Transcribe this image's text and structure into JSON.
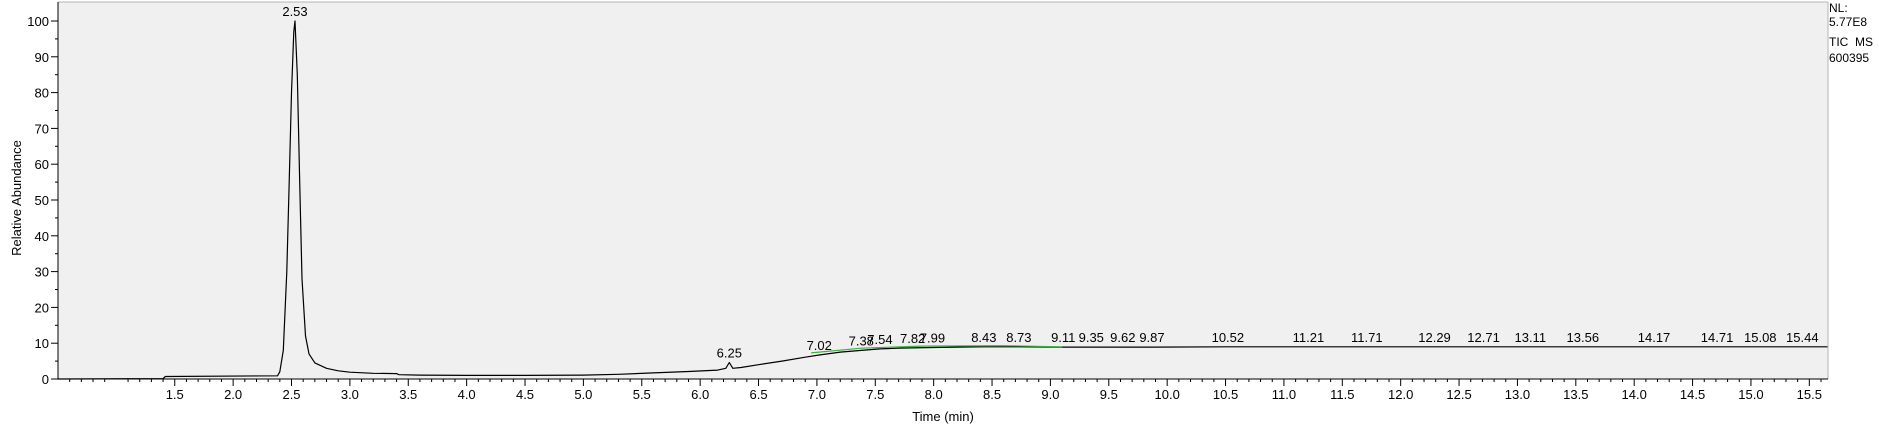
{
  "chart_data": {
    "type": "line",
    "xlabel": "Time (min)",
    "ylabel": "Relative Abundance",
    "xlim": [
      0.5,
      15.66
    ],
    "ylim": [
      0,
      100
    ],
    "x_ticks": [
      "1.5",
      "2.0",
      "2.5",
      "3.0",
      "3.5",
      "4.0",
      "4.5",
      "5.0",
      "5.5",
      "6.0",
      "6.5",
      "7.0",
      "7.5",
      "8.0",
      "8.5",
      "9.0",
      "9.5",
      "10.0",
      "10.5",
      "11.0",
      "11.5",
      "12.0",
      "12.5",
      "13.0",
      "13.5",
      "14.0",
      "14.5",
      "15.0",
      "15.5"
    ],
    "y_ticks": [
      "0",
      "10",
      "20",
      "30",
      "40",
      "50",
      "60",
      "70",
      "80",
      "90",
      "100"
    ],
    "grid": false,
    "legend": "none",
    "info_text": [
      "NL:",
      "5.77E8",
      "TIC  MS",
      "600395"
    ],
    "series": [
      {
        "color": "#000000",
        "points": [
          [
            0.5,
            0.0
          ],
          [
            1.4,
            0.1
          ],
          [
            1.42,
            0.7
          ],
          [
            2.38,
            0.9
          ],
          [
            2.4,
            2.0
          ],
          [
            2.43,
            8.0
          ],
          [
            2.46,
            30.0
          ],
          [
            2.48,
            55.0
          ],
          [
            2.5,
            80.0
          ],
          [
            2.52,
            97.0
          ],
          [
            2.53,
            100.0
          ],
          [
            2.55,
            85.0
          ],
          [
            2.57,
            55.0
          ],
          [
            2.59,
            28.0
          ],
          [
            2.62,
            12.0
          ],
          [
            2.65,
            7.0
          ],
          [
            2.7,
            4.5
          ],
          [
            2.8,
            3.0
          ],
          [
            2.9,
            2.3
          ],
          [
            3.0,
            1.9
          ],
          [
            3.2,
            1.6
          ],
          [
            3.4,
            1.5
          ],
          [
            3.42,
            1.2
          ],
          [
            3.6,
            1.1
          ],
          [
            4.0,
            1.0
          ],
          [
            4.5,
            1.0
          ],
          [
            5.0,
            1.1
          ],
          [
            5.3,
            1.3
          ],
          [
            5.6,
            1.7
          ],
          [
            5.9,
            2.1
          ],
          [
            6.15,
            2.5
          ],
          [
            6.22,
            3.0
          ],
          [
            6.25,
            4.6
          ],
          [
            6.28,
            3.0
          ],
          [
            6.35,
            3.2
          ],
          [
            6.5,
            4.0
          ],
          [
            6.7,
            5.0
          ],
          [
            6.9,
            6.1
          ],
          [
            7.02,
            6.7
          ],
          [
            7.2,
            7.5
          ],
          [
            7.38,
            8.0
          ],
          [
            7.54,
            8.4
          ],
          [
            7.7,
            8.6
          ],
          [
            7.82,
            8.7
          ],
          [
            7.99,
            8.8
          ],
          [
            8.2,
            8.9
          ],
          [
            8.43,
            9.0
          ],
          [
            8.73,
            9.0
          ],
          [
            9.11,
            8.9
          ],
          [
            9.35,
            8.9
          ],
          [
            9.62,
            8.9
          ],
          [
            9.87,
            8.9
          ],
          [
            10.52,
            9.0
          ],
          [
            11.21,
            9.0
          ],
          [
            11.71,
            9.0
          ],
          [
            12.29,
            9.0
          ],
          [
            12.71,
            9.0
          ],
          [
            13.11,
            9.0
          ],
          [
            13.56,
            9.0
          ],
          [
            14.17,
            9.0
          ],
          [
            14.71,
            9.0
          ],
          [
            15.08,
            9.0
          ],
          [
            15.44,
            9.0
          ],
          [
            15.66,
            9.0
          ]
        ]
      },
      {
        "color": "#3cb043",
        "points": [
          [
            6.95,
            7.3
          ],
          [
            7.38,
            8.6
          ],
          [
            7.9,
            9.2
          ],
          [
            8.6,
            9.3
          ],
          [
            9.1,
            9.0
          ]
        ]
      }
    ],
    "peak_labels": [
      {
        "x": 2.53,
        "y": 100.0,
        "label": "2.53"
      },
      {
        "x": 6.25,
        "y": 4.6,
        "label": "6.25"
      },
      {
        "x": 7.02,
        "y": 6.7,
        "label": "7.02"
      },
      {
        "x": 7.38,
        "y": 8.0,
        "label": "7.38"
      },
      {
        "x": 7.54,
        "y": 8.4,
        "label": "7.54"
      },
      {
        "x": 7.82,
        "y": 8.7,
        "label": "7.82"
      },
      {
        "x": 7.99,
        "y": 8.8,
        "label": "7.99"
      },
      {
        "x": 8.43,
        "y": 9.0,
        "label": "8.43"
      },
      {
        "x": 8.73,
        "y": 9.0,
        "label": "8.73"
      },
      {
        "x": 9.11,
        "y": 8.9,
        "label": "9.11"
      },
      {
        "x": 9.35,
        "y": 8.9,
        "label": "9.35"
      },
      {
        "x": 9.62,
        "y": 8.9,
        "label": "9.62"
      },
      {
        "x": 9.87,
        "y": 8.9,
        "label": "9.87"
      },
      {
        "x": 10.52,
        "y": 9.0,
        "label": "10.52"
      },
      {
        "x": 11.21,
        "y": 9.0,
        "label": "11.21"
      },
      {
        "x": 11.71,
        "y": 9.0,
        "label": "11.71"
      },
      {
        "x": 12.29,
        "y": 9.0,
        "label": "12.29"
      },
      {
        "x": 12.71,
        "y": 9.0,
        "label": "12.71"
      },
      {
        "x": 13.11,
        "y": 9.0,
        "label": "13.11"
      },
      {
        "x": 13.56,
        "y": 9.0,
        "label": "13.56"
      },
      {
        "x": 14.17,
        "y": 9.0,
        "label": "14.17"
      },
      {
        "x": 14.71,
        "y": 9.0,
        "label": "14.71"
      },
      {
        "x": 15.08,
        "y": 9.0,
        "label": "15.08"
      },
      {
        "x": 15.44,
        "y": 9.0,
        "label": "15.44"
      }
    ]
  }
}
